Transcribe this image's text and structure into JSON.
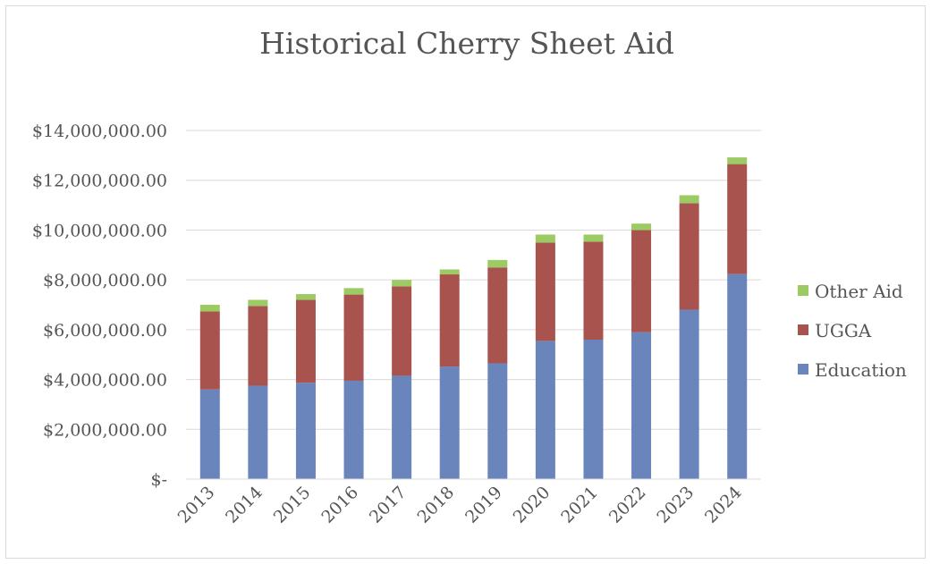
{
  "chart_data": {
    "type": "bar",
    "stacked": true,
    "title": "Historical Cherry Sheet Aid",
    "xlabel": "",
    "ylabel": "",
    "categories": [
      "2013",
      "2014",
      "2015",
      "2016",
      "2017",
      "2018",
      "2019",
      "2020",
      "2021",
      "2022",
      "2023",
      "2024"
    ],
    "series": [
      {
        "name": "Education",
        "color": "#6a84bc",
        "values": [
          3600000,
          3750000,
          3870000,
          3950000,
          4150000,
          4520000,
          4650000,
          5550000,
          5600000,
          5900000,
          6800000,
          8230000
        ]
      },
      {
        "name": "UGGA",
        "color": "#a9534f",
        "values": [
          3130000,
          3200000,
          3330000,
          3460000,
          3590000,
          3700000,
          3850000,
          3950000,
          3930000,
          4100000,
          4280000,
          4420000
        ]
      },
      {
        "name": "Other Aid",
        "color": "#9dcb63",
        "values": [
          270000,
          250000,
          230000,
          260000,
          260000,
          200000,
          300000,
          320000,
          290000,
          260000,
          320000,
          270000
        ]
      }
    ],
    "ylim": [
      0,
      14000000
    ],
    "yticks": [
      0,
      2000000,
      4000000,
      6000000,
      8000000,
      10000000,
      12000000,
      14000000
    ],
    "ytick_labels": [
      "$-",
      "$2,000,000.00",
      "$4,000,000.00",
      "$6,000,000.00",
      "$8,000,000.00",
      "$10,000,000.00",
      "$12,000,000.00",
      "$14,000,000.00"
    ],
    "grid": true,
    "legend_position": "right",
    "legend_order": [
      "Other Aid",
      "UGGA",
      "Education"
    ],
    "gridline_color": "#d9d9d9",
    "text_color": "#555555"
  }
}
